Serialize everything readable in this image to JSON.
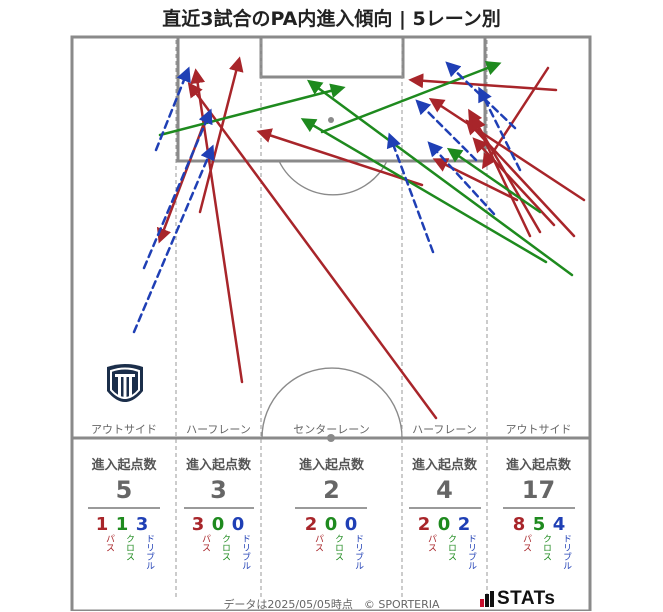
{
  "title": "直近3試合のPA内進入傾向 | 5レーン別",
  "lanes": [
    {
      "label": "アウトサイド",
      "stat_header": "進入起点数",
      "total": "5",
      "breakdown": [
        {
          "value": "1",
          "type": "パス"
        },
        {
          "value": "1",
          "type": "クロス"
        },
        {
          "value": "3",
          "type": "ドリブル"
        }
      ]
    },
    {
      "label": "ハーフレーン",
      "stat_header": "進入起点数",
      "total": "3",
      "breakdown": [
        {
          "value": "3",
          "type": "パス"
        },
        {
          "value": "0",
          "type": "クロス"
        },
        {
          "value": "0",
          "type": "ドリブル"
        }
      ]
    },
    {
      "label": "センターレーン",
      "stat_header": "進入起点数",
      "total": "2",
      "breakdown": [
        {
          "value": "2",
          "type": "パス"
        },
        {
          "value": "0",
          "type": "クロス"
        },
        {
          "value": "0",
          "type": "ドリブル"
        }
      ]
    },
    {
      "label": "ハーフレーン",
      "stat_header": "進入起点数",
      "total": "4",
      "breakdown": [
        {
          "value": "2",
          "type": "パス"
        },
        {
          "value": "0",
          "type": "クロス"
        },
        {
          "value": "2",
          "type": "ドリブル"
        }
      ]
    },
    {
      "label": "アウトサイド",
      "stat_header": "進入起点数",
      "total": "17",
      "breakdown": [
        {
          "value": "8",
          "type": "パス"
        },
        {
          "value": "5",
          "type": "クロス"
        },
        {
          "value": "4",
          "type": "ドリブル"
        }
      ]
    }
  ],
  "colors": {
    "pass": "#a8252a",
    "cross": "#1e8a1e",
    "dribble": "#1f3fb5",
    "pitch_line": "#8a8a8a"
  },
  "legend_types": {
    "pass": "パス",
    "cross": "クロス",
    "dribble": "ドリブル"
  },
  "footer": "データは2025/05/05時点　© SPORTERIA",
  "brand": "STATs",
  "team_logo_icon": "team-crest-icon"
}
